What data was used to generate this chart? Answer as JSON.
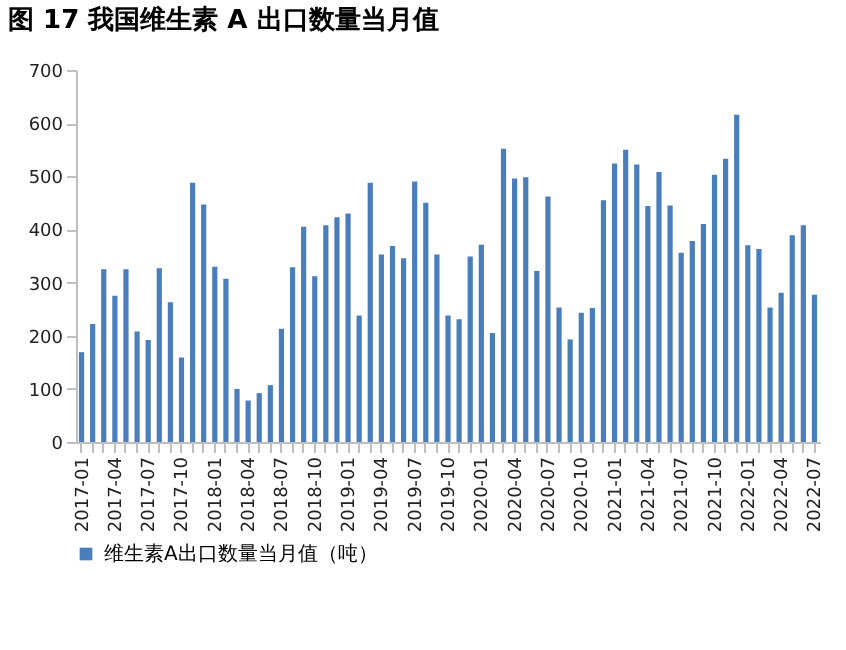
{
  "chart_data": {
    "type": "bar",
    "title": "图 17 我国维生素 A 出口数量当月值",
    "categories": [
      "2017-01",
      null,
      null,
      "2017-04",
      null,
      null,
      "2017-07",
      null,
      null,
      "2017-10",
      null,
      null,
      "2018-01",
      null,
      null,
      "2018-04",
      null,
      null,
      "2018-07",
      null,
      null,
      "2018-10",
      null,
      null,
      "2019-01",
      null,
      null,
      "2019-04",
      null,
      null,
      "2019-07",
      null,
      null,
      "2019-10",
      null,
      null,
      "2020-01",
      null,
      null,
      "2020-04",
      null,
      null,
      "2020-07",
      null,
      null,
      "2020-10",
      null,
      null,
      "2021-01",
      null,
      null,
      "2021-04",
      null,
      null,
      "2021-07",
      null,
      null,
      "2021-10",
      null,
      null,
      "2022-01",
      null,
      null,
      "2022-04",
      null,
      null,
      "2022-07"
    ],
    "series": [
      {
        "name": "维生素A出口数量当月值（吨）",
        "color": "#4a7ebb",
        "values": [
          169,
          222,
          325,
          275,
          325,
          208,
          192,
          327,
          263,
          159,
          488,
          447,
          330,
          307,
          100,
          78,
          92,
          107,
          213,
          329,
          405,
          312,
          408,
          423,
          430,
          238,
          488,
          353,
          369,
          346,
          490,
          450,
          353,
          238,
          231,
          349,
          371,
          205,
          552,
          496,
          498,
          322,
          462,
          253,
          193,
          243,
          252,
          455,
          524,
          550,
          522,
          444,
          508,
          445,
          356,
          378,
          410,
          503,
          533,
          616,
          370,
          363,
          253,
          281,
          389,
          408,
          277
        ]
      }
    ],
    "ylim": [
      0,
      700
    ],
    "yticks": [
      0,
      100,
      200,
      300,
      400,
      500,
      600,
      700
    ],
    "grid": false,
    "legend": "bottom"
  }
}
